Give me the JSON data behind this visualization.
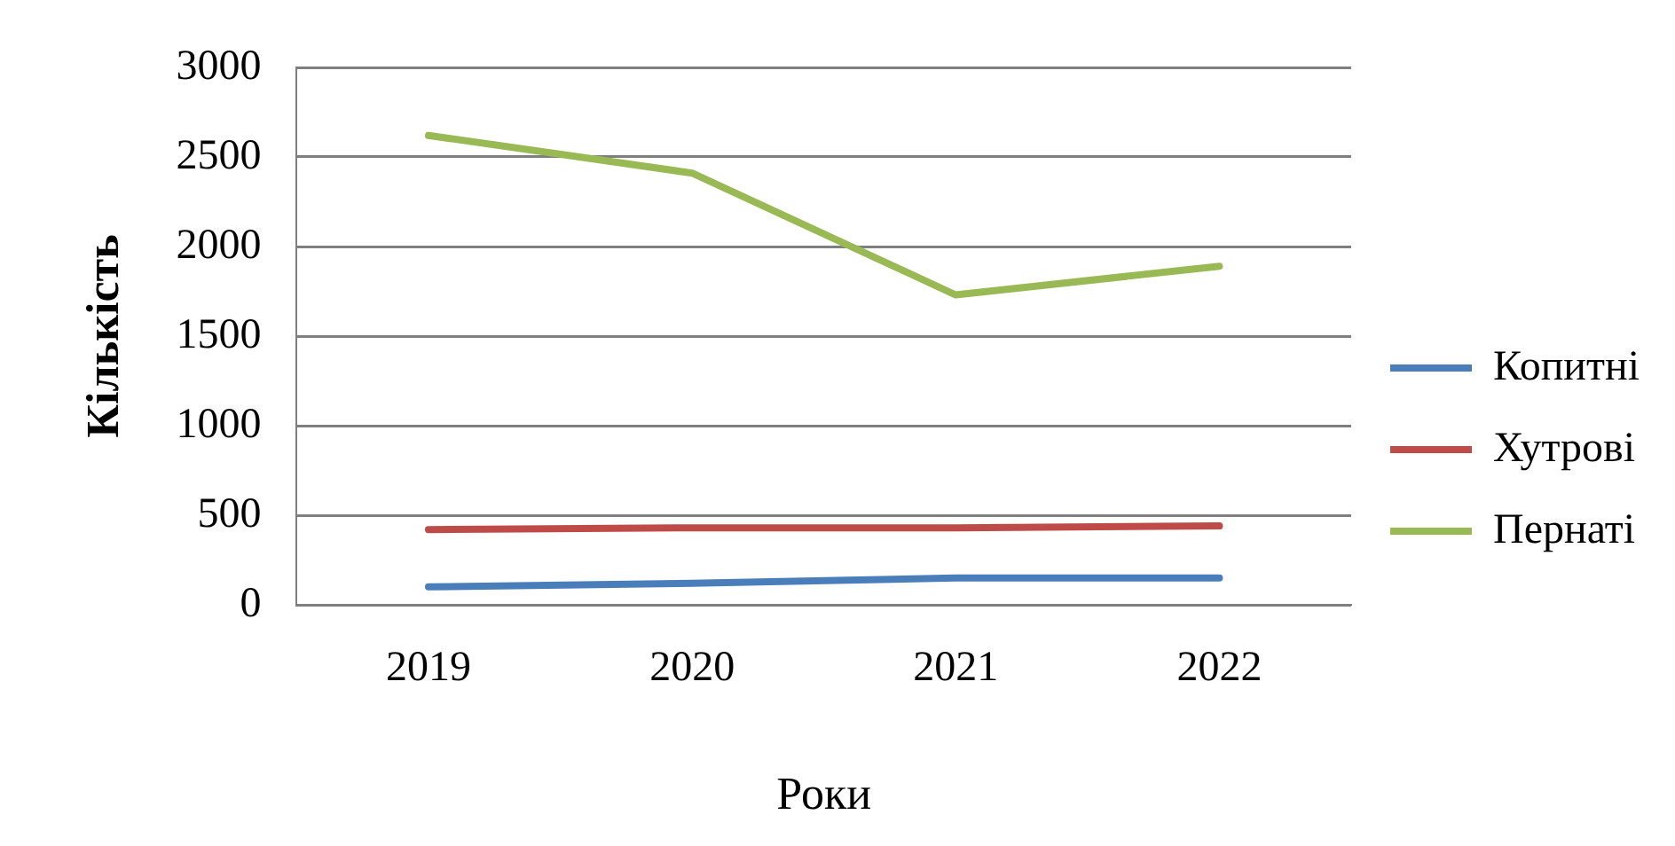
{
  "chart_data": {
    "type": "line",
    "xlabel": "Роки",
    "ylabel": "Кількість",
    "categories": [
      "2019",
      "2020",
      "2021",
      "2022"
    ],
    "series": [
      {
        "name": "Копитні",
        "color": "#4a7ebb",
        "values": [
          100,
          120,
          150,
          150
        ]
      },
      {
        "name": "Хутрові",
        "color": "#be4b48",
        "values": [
          420,
          430,
          430,
          440
        ]
      },
      {
        "name": "Пернаті",
        "color": "#98b954",
        "values": [
          2620,
          2410,
          1730,
          1890
        ]
      }
    ],
    "ylim": [
      0,
      3000
    ],
    "yticks": [
      0,
      500,
      1000,
      1500,
      2000,
      2500,
      3000
    ],
    "grid": "y",
    "legend": "right",
    "marker": "none",
    "line_style": "solid"
  }
}
